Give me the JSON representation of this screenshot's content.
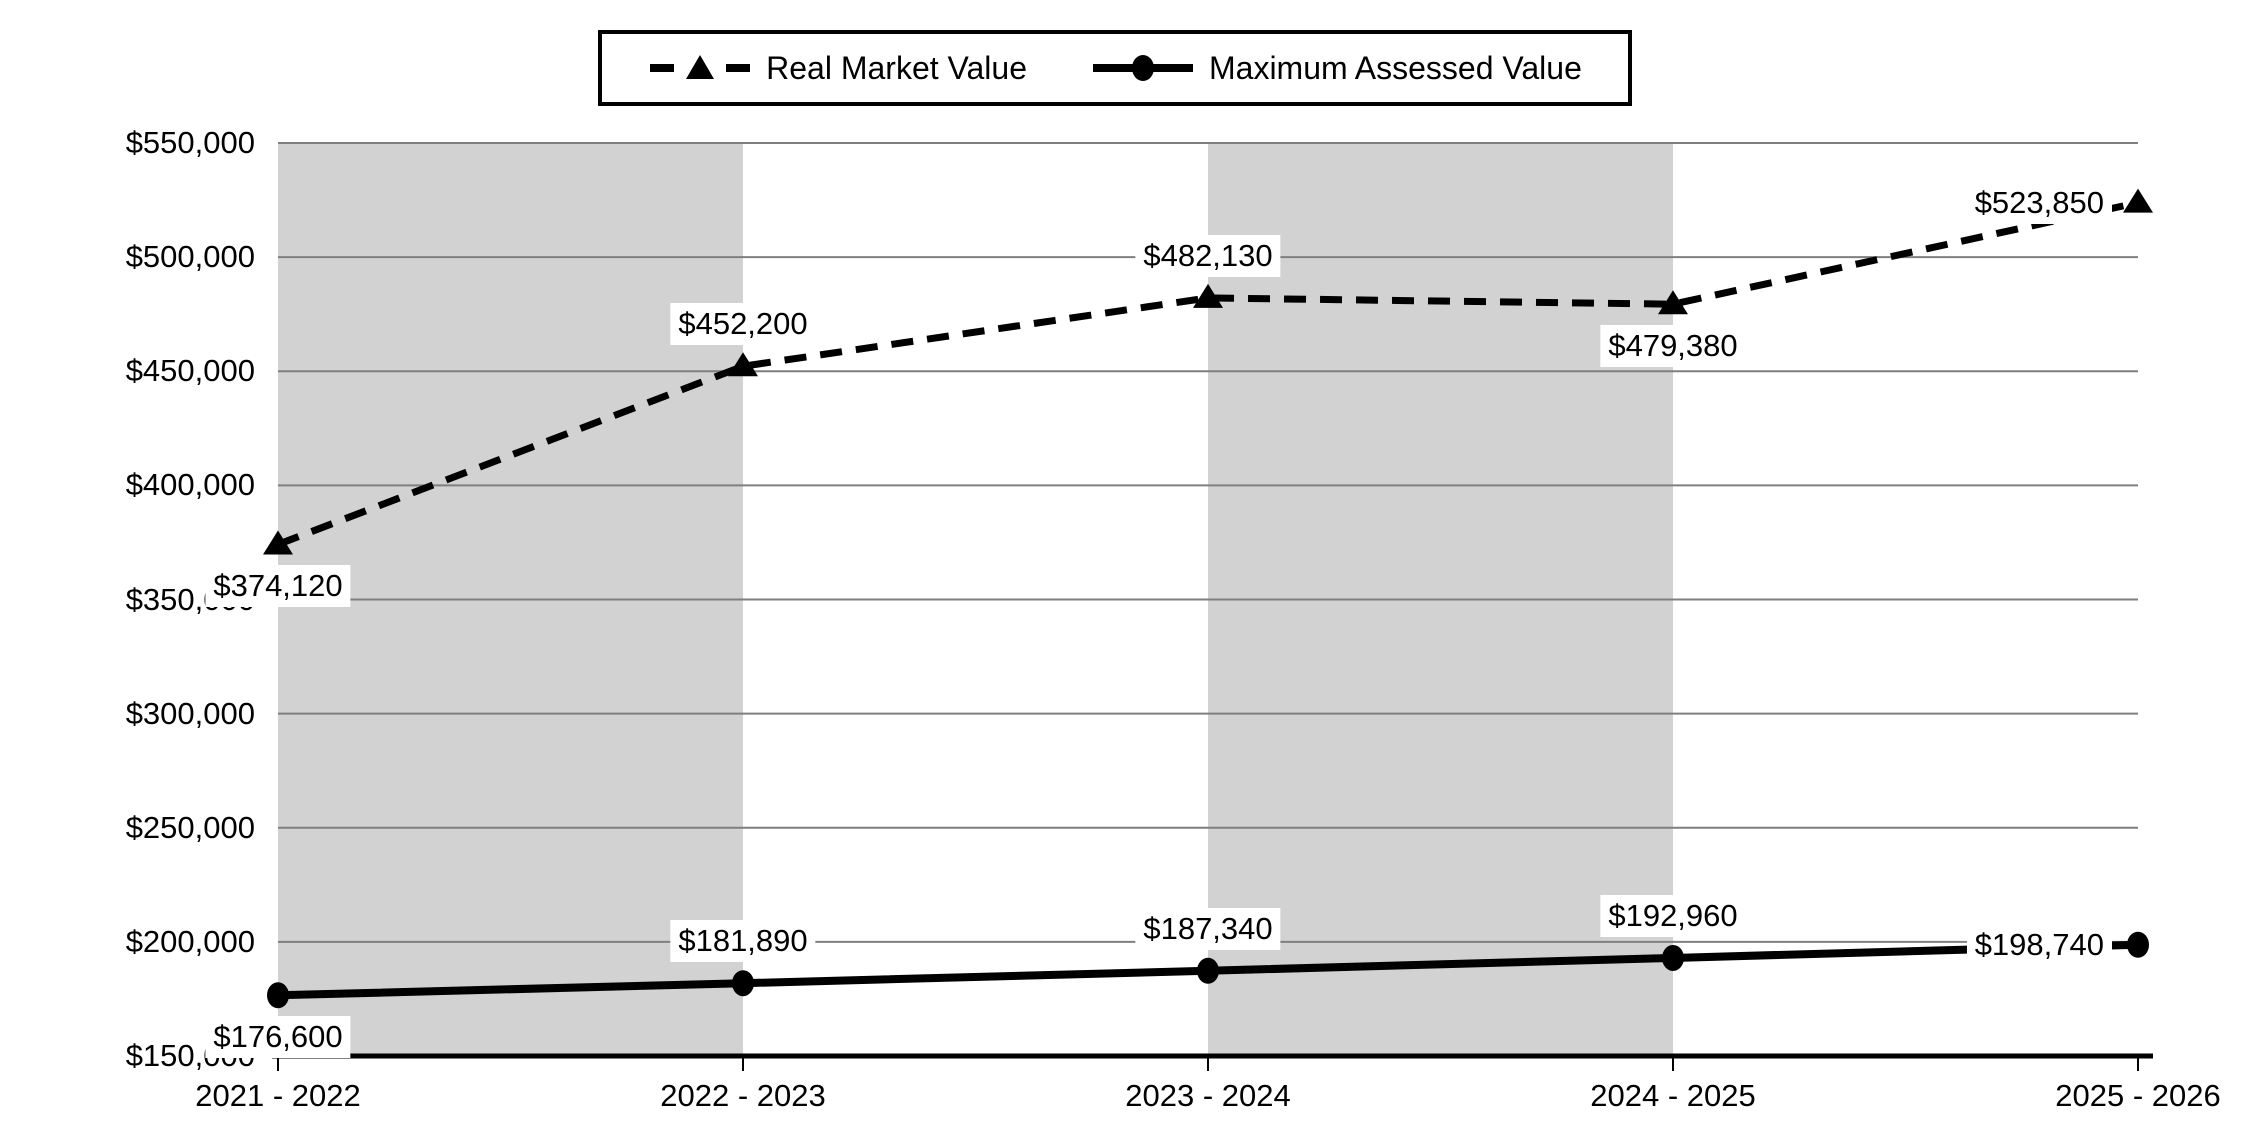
{
  "legend": {
    "items": [
      {
        "label": "Real Market Value",
        "marker": "dashed-line-triangle"
      },
      {
        "label": "Maximum Assessed Value",
        "marker": "solid-line-circle"
      }
    ]
  },
  "chart_data": {
    "type": "line",
    "title": "",
    "xlabel": "",
    "ylabel": "",
    "categories": [
      "2021 - 2022",
      "2022 - 2023",
      "2023 - 2024",
      "2024 - 2025",
      "2025 - 2026"
    ],
    "series": [
      {
        "name": "Real Market Value",
        "values": [
          374120,
          452200,
          482130,
          479380,
          523850
        ],
        "labels": [
          "$374,120",
          "$452,200",
          "$482,130",
          "$479,380",
          "$523,850"
        ],
        "line_style": "dashed",
        "marker": "triangle",
        "label_placement": [
          "below",
          "above",
          "above",
          "below",
          "left"
        ]
      },
      {
        "name": "Maximum Assessed Value",
        "values": [
          176600,
          181890,
          187340,
          192960,
          198740
        ],
        "labels": [
          "$176,600",
          "$181,890",
          "$187,340",
          "$192,960",
          "$198,740"
        ],
        "line_style": "solid",
        "marker": "circle",
        "label_placement": [
          "below",
          "above",
          "above",
          "above",
          "left"
        ]
      }
    ],
    "ylim": [
      150000,
      550000
    ],
    "ytick_step": 50000,
    "ytick_labels": [
      "$150,000",
      "$200,000",
      "$250,000",
      "$300,000",
      "$350,000",
      "$400,000",
      "$450,000",
      "$500,000",
      "$550,000"
    ],
    "grid": true,
    "legend_position": "top-center",
    "plot_bands": "alternating category bands shaded gray (1st and 3rd intervals)",
    "colors": {
      "series": "#000000",
      "band": "#d2d2d2",
      "gridline": "#7f7f7f",
      "axis": "#000000",
      "background": "#ffffff"
    }
  }
}
